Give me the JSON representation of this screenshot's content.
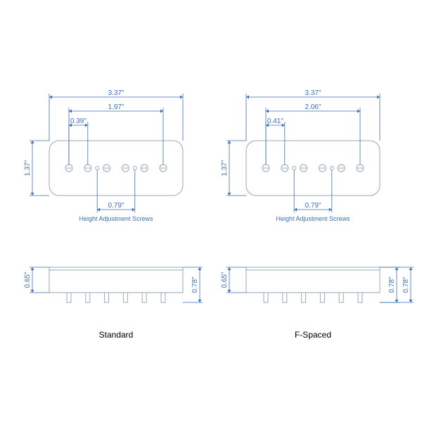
{
  "colors": {
    "accent": "#3a6fb7",
    "body_stroke": "#9aa7b4",
    "background": "#ffffff"
  },
  "font": {
    "dim_pt": 10,
    "label_pt": 9,
    "title_pt": 12
  },
  "diagram": {
    "type": "engineering-dimension-drawing",
    "variants": [
      {
        "name": "Standard",
        "top": {
          "width_in": "3.37\"",
          "inner_width_in": "1.97\"",
          "pitch_in": "0.39\"",
          "height_in": "1.37\"",
          "small_dim_in": "0.79\"",
          "label": "Height Adjustment Screws"
        },
        "side": {
          "body_h_in": "0.65\"",
          "overall_h_in": "0.78\""
        }
      },
      {
        "name": "F-Spaced",
        "top": {
          "width_in": "3.37\"",
          "inner_width_in": "2.06\"",
          "pitch_in": "0.41\"",
          "height_in": "1.37\"",
          "small_dim_in": "0.79\"",
          "label": "Height Adjustment Screws"
        },
        "side": {
          "body_h_in": "0.65\"",
          "overall_h_in": "0.78\"",
          "overall_h_in_dup": "0.78\""
        }
      }
    ]
  }
}
